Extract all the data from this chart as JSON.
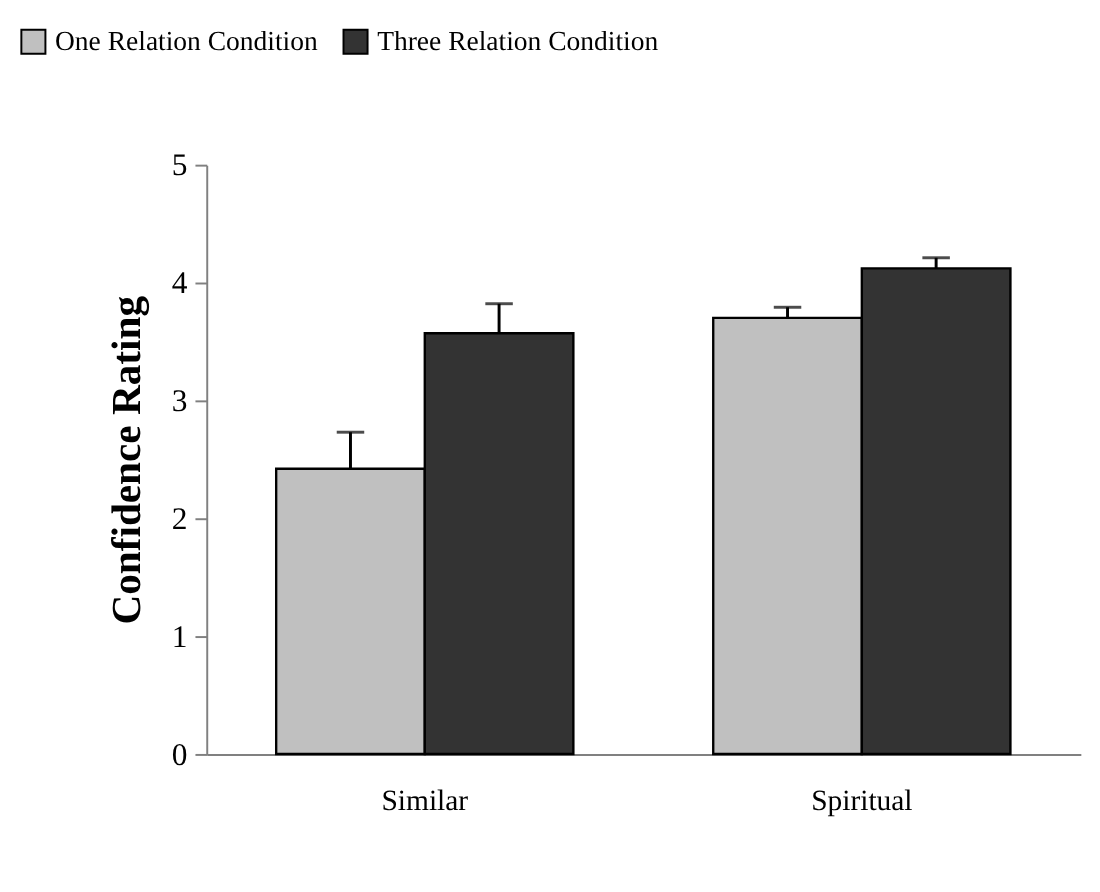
{
  "chart_data": {
    "type": "bar",
    "ylabel": "Confidence Rating",
    "categories": [
      "Similar",
      "Spiritual"
    ],
    "series": [
      {
        "name": "One Relation Condition",
        "color": "#c0c0c0",
        "values": [
          2.42,
          3.7
        ],
        "errors": [
          [
            2.42,
            2.73
          ],
          [
            3.7,
            3.79
          ]
        ]
      },
      {
        "name": "Three Relation Condition",
        "color": "#333333",
        "values": [
          3.57,
          4.12
        ],
        "errors": [
          [
            3.57,
            3.82
          ],
          [
            4.12,
            4.21
          ]
        ]
      }
    ],
    "ylim": [
      0,
      5
    ],
    "yticks": [
      0,
      1,
      2,
      3,
      4,
      5
    ],
    "grid": false,
    "legend": "top left"
  }
}
